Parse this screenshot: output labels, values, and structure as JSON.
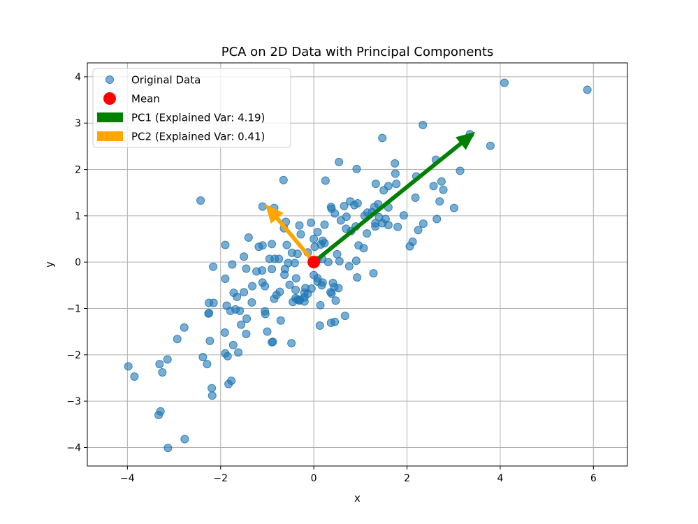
{
  "chart_data": {
    "type": "scatter",
    "title": "PCA on 2D Data with Principal Components",
    "xlabel": "x",
    "ylabel": "y",
    "xlim": [
      -4.86,
      6.73
    ],
    "ylim": [
      -4.4,
      4.3
    ],
    "xticks": [
      -4,
      -2,
      0,
      2,
      4,
      6
    ],
    "yticks": [
      -4,
      -3,
      -2,
      -1,
      0,
      1,
      2,
      3,
      4
    ],
    "xtick_labels": [
      "−4",
      "−2",
      "0",
      "2",
      "4",
      "6"
    ],
    "ytick_labels": [
      "−4",
      "−3",
      "−2",
      "−1",
      "0",
      "1",
      "2",
      "3",
      "4"
    ],
    "grid": true,
    "legend_position": "top-left",
    "series": [
      {
        "name": "Original Data",
        "color": "#1f77b4",
        "points": [
          [
            4.09,
            3.87
          ],
          [
            5.87,
            3.72
          ],
          [
            2.34,
            2.96
          ],
          [
            3.35,
            2.76
          ],
          [
            3.79,
            2.51
          ],
          [
            1.47,
            2.68
          ],
          [
            0.54,
            2.16
          ],
          [
            0.92,
            2.01
          ],
          [
            1.74,
            2.13
          ],
          [
            2.62,
            2.21
          ],
          [
            3.14,
            1.97
          ],
          [
            2.2,
            1.85
          ],
          [
            1.75,
            1.91
          ],
          [
            2.57,
            1.64
          ],
          [
            2.74,
            1.74
          ],
          [
            2.78,
            1.56
          ],
          [
            1.6,
            1.64
          ],
          [
            1.77,
            1.69
          ],
          [
            1.33,
            1.69
          ],
          [
            1.5,
            1.55
          ],
          [
            1.38,
            1.25
          ],
          [
            2.7,
            1.31
          ],
          [
            3.01,
            1.17
          ],
          [
            2.18,
            1.39
          ],
          [
            1.6,
            1.18
          ],
          [
            1.3,
            1.19
          ],
          [
            0.78,
            1.31
          ],
          [
            0.87,
            1.23
          ],
          [
            0.94,
            1.27
          ],
          [
            0.65,
            1.21
          ],
          [
            0.45,
            1.05
          ],
          [
            0.37,
            1.19
          ],
          [
            0.38,
            1.15
          ],
          [
            0.25,
            1.76
          ],
          [
            -0.65,
            1.77
          ],
          [
            -2.43,
            1.33
          ],
          [
            -1.1,
            1.2
          ],
          [
            -0.85,
            1.17
          ],
          [
            0.58,
            0.9
          ],
          [
            0.7,
            0.98
          ],
          [
            1.09,
            1.0
          ],
          [
            1.15,
            1.07
          ],
          [
            1.25,
            1.08
          ],
          [
            1.54,
            0.93
          ],
          [
            1.4,
            0.97
          ],
          [
            1.32,
            0.84
          ],
          [
            1.6,
            0.8
          ],
          [
            1.8,
            0.76
          ],
          [
            1.93,
            1.01
          ],
          [
            2.35,
            0.83
          ],
          [
            2.64,
            0.93
          ],
          [
            2.24,
            0.69
          ],
          [
            1.32,
            0.77
          ],
          [
            1.47,
            0.84
          ],
          [
            0.9,
            0.77
          ],
          [
            0.69,
            0.72
          ],
          [
            0.8,
            0.67
          ],
          [
            1.14,
            0.62
          ],
          [
            0.96,
            0.36
          ],
          [
            1.07,
            0.3
          ],
          [
            2.12,
            0.44
          ],
          [
            2.06,
            0.34
          ],
          [
            0.23,
            0.81
          ],
          [
            0.08,
            0.65
          ],
          [
            -0.06,
            0.85
          ],
          [
            -0.6,
            0.87
          ],
          [
            -0.31,
            0.79
          ],
          [
            -0.28,
            0.6
          ],
          [
            -0.64,
            0.73
          ],
          [
            0.0,
            0.5
          ],
          [
            0.19,
            0.46
          ],
          [
            0.23,
            0.41
          ],
          [
            0.15,
            0.38
          ],
          [
            0.02,
            0.33
          ],
          [
            -0.13,
            0.21
          ],
          [
            -0.47,
            0.2
          ],
          [
            -0.35,
            0.18
          ],
          [
            -0.58,
            0.37
          ],
          [
            -0.9,
            0.39
          ],
          [
            -1.1,
            0.36
          ],
          [
            -1.18,
            0.33
          ],
          [
            -1.4,
            0.53
          ],
          [
            -1.5,
            0.12
          ],
          [
            -1.75,
            -0.05
          ],
          [
            -1.9,
            0.37
          ],
          [
            -0.95,
            0.07
          ],
          [
            -0.75,
            0.07
          ],
          [
            -0.84,
            0.07
          ],
          [
            -1.45,
            -0.14
          ],
          [
            -1.23,
            -0.2
          ],
          [
            -1.11,
            -0.18
          ],
          [
            -0.9,
            -0.15
          ],
          [
            -0.62,
            -0.15
          ],
          [
            -0.55,
            -0.02
          ],
          [
            -0.41,
            -0.02
          ],
          [
            -0.63,
            -0.27
          ],
          [
            -0.38,
            -0.35
          ],
          [
            -1.1,
            -0.44
          ],
          [
            -1.05,
            -0.52
          ],
          [
            -1.32,
            -0.52
          ],
          [
            -1.5,
            -0.65
          ],
          [
            -1.72,
            -0.66
          ],
          [
            -1.65,
            -0.75
          ],
          [
            -1.33,
            -0.87
          ],
          [
            -1.59,
            -1.05
          ],
          [
            -1.68,
            -1.02
          ],
          [
            -1.79,
            -1.05
          ],
          [
            -1.87,
            -0.94
          ],
          [
            -1.9,
            -0.36
          ],
          [
            -2.16,
            -0.1
          ],
          [
            -2.15,
            -0.88
          ],
          [
            -2.25,
            -0.88
          ],
          [
            -2.26,
            -1.11
          ],
          [
            -2.25,
            -1.1
          ],
          [
            -1.05,
            -1.06
          ],
          [
            -1.04,
            -1.12
          ],
          [
            -0.71,
            -1.26
          ],
          [
            -0.8,
            -0.71
          ],
          [
            -0.73,
            -0.64
          ],
          [
            -0.52,
            -0.49
          ],
          [
            -0.39,
            -0.6
          ],
          [
            -0.39,
            -0.78
          ],
          [
            -0.3,
            -0.81
          ],
          [
            -0.2,
            -0.76
          ],
          [
            -0.13,
            -0.68
          ],
          [
            -0.05,
            -0.57
          ],
          [
            -0.18,
            -0.56
          ],
          [
            -0.2,
            -0.66
          ],
          [
            -0.2,
            -0.85
          ],
          [
            -0.31,
            -0.83
          ],
          [
            -0.45,
            -0.86
          ],
          [
            -0.35,
            -0.81
          ],
          [
            -0.85,
            -0.79
          ],
          [
            -1.44,
            -1.22
          ],
          [
            -1.56,
            -1.35
          ],
          [
            -1.45,
            -1.55
          ],
          [
            -1.0,
            -1.5
          ],
          [
            -0.9,
            -1.73
          ],
          [
            -0.88,
            -1.72
          ],
          [
            -0.48,
            -1.75
          ],
          [
            -1.73,
            -1.79
          ],
          [
            -1.91,
            -1.52
          ],
          [
            -1.9,
            -1.97
          ],
          [
            -1.62,
            -1.95
          ],
          [
            -1.85,
            -2.03
          ],
          [
            -2.23,
            -1.7
          ],
          [
            -2.78,
            -1.41
          ],
          [
            -2.93,
            -1.66
          ],
          [
            -2.38,
            -2.05
          ],
          [
            -2.29,
            -2.2
          ],
          [
            -2.19,
            -2.72
          ],
          [
            -2.18,
            -2.88
          ],
          [
            -1.77,
            -2.56
          ],
          [
            -1.83,
            -2.63
          ],
          [
            -3.14,
            -2.1
          ],
          [
            -3.31,
            -2.2
          ],
          [
            -3.25,
            -2.38
          ],
          [
            -3.98,
            -2.25
          ],
          [
            -3.85,
            -2.47
          ],
          [
            -3.29,
            -3.22
          ],
          [
            -3.33,
            -3.3
          ],
          [
            -2.77,
            -3.82
          ],
          [
            -3.13,
            -4.01
          ],
          [
            0.07,
            0.04
          ],
          [
            0.18,
            0.07
          ],
          [
            0.31,
            0.0
          ],
          [
            0.5,
            0.17
          ],
          [
            0.55,
            0.02
          ],
          [
            0.76,
            -0.09
          ],
          [
            0.91,
            0.03
          ],
          [
            0.93,
            -0.33
          ],
          [
            0.0,
            -0.28
          ],
          [
            0.08,
            -0.35
          ],
          [
            0.08,
            -0.42
          ],
          [
            0.17,
            -0.5
          ],
          [
            0.19,
            -0.44
          ],
          [
            0.41,
            -0.45
          ],
          [
            0.44,
            -0.54
          ],
          [
            0.53,
            -0.56
          ],
          [
            0.36,
            -0.65
          ],
          [
            0.38,
            -0.68
          ],
          [
            0.47,
            -0.83
          ],
          [
            0.14,
            -0.93
          ],
          [
            0.67,
            -1.16
          ],
          [
            0.37,
            -1.31
          ],
          [
            0.45,
            -1.29
          ],
          [
            0.13,
            -1.37
          ],
          [
            1.28,
            -0.24
          ]
        ]
      },
      {
        "name": "Mean",
        "color": "#ff0000",
        "points": [
          [
            0.0,
            0.0
          ]
        ]
      }
    ],
    "vectors": [
      {
        "name": "PC1 (Explained Var: 4.19)",
        "color": "#008000",
        "start": [
          0.0,
          0.0
        ],
        "end": [
          3.45,
          2.8
        ]
      },
      {
        "name": "PC2 (Explained Var: 0.41)",
        "color": "#ffa500",
        "start": [
          0.0,
          0.0
        ],
        "end": [
          -1.03,
          1.24
        ]
      }
    ],
    "legend": [
      {
        "label": "Original Data",
        "marker": "scatter",
        "color": "#1f77b4"
      },
      {
        "label": "Mean",
        "marker": "dot",
        "color": "#ff0000"
      },
      {
        "label": "PC1 (Explained Var: 4.19)",
        "marker": "patch",
        "color": "#008000"
      },
      {
        "label": "PC2 (Explained Var: 0.41)",
        "marker": "patch",
        "color": "#ffa500"
      }
    ]
  }
}
